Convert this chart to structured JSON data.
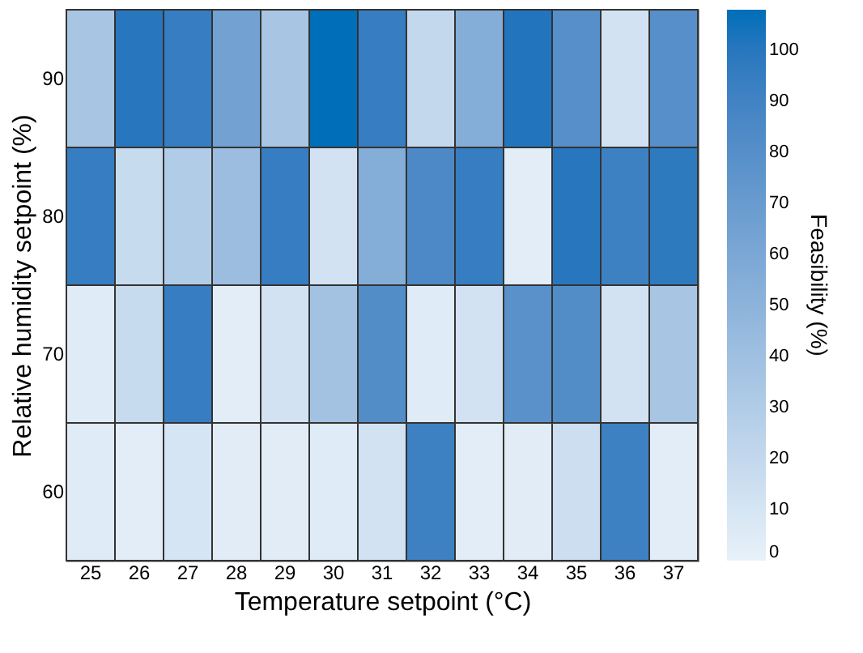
{
  "chart_data": {
    "type": "heatmap",
    "xlabel": "Temperature setpoint (°C)",
    "ylabel": "Relative humidity setpoint (%)",
    "clabel": "Feasibility (%)",
    "categories": [
      "25",
      "26",
      "27",
      "28",
      "29",
      "30",
      "31",
      "32",
      "33",
      "34",
      "35",
      "36",
      "37"
    ],
    "y_categories": [
      "90",
      "80",
      "70",
      "60"
    ],
    "cells": [
      [
        35,
        100,
        95,
        65,
        35,
        108,
        95,
        20,
        55,
        102,
        80,
        12,
        80
      ],
      [
        95,
        18,
        30,
        42,
        95,
        12,
        55,
        85,
        95,
        3,
        100,
        92,
        98
      ],
      [
        5,
        18,
        95,
        3,
        12,
        38,
        82,
        5,
        12,
        78,
        82,
        12,
        35
      ],
      [
        5,
        3,
        10,
        4,
        4,
        5,
        12,
        92,
        3,
        4,
        15,
        92,
        3
      ]
    ],
    "clim": [
      0,
      108
    ],
    "cticks": [
      0,
      10,
      20,
      30,
      40,
      50,
      60,
      70,
      80,
      90,
      100
    ],
    "colors": [
      "#e8f1f9",
      "#006eb9"
    ]
  }
}
